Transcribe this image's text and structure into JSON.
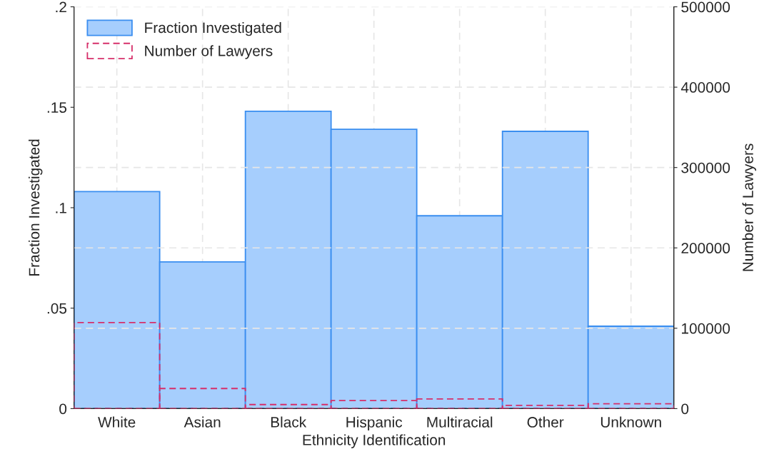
{
  "chart_data": {
    "type": "bar",
    "xlabel": "Ethnicity Identification",
    "ylabel": "Fraction Investigated",
    "y2label": "Number of Lawyers",
    "categories": [
      "White",
      "Asian",
      "Black",
      "Hispanic",
      "Multiracial",
      "Other",
      "Unknown"
    ],
    "series": [
      {
        "name": "Fraction Investigated",
        "color": "#a6cefd",
        "values": [
          0.108,
          0.073,
          0.148,
          0.139,
          0.096,
          0.138,
          0.041
        ]
      },
      {
        "name": "Number of Lawyers",
        "color": "#d62f6a",
        "axis": "y2",
        "line_style": "dashed",
        "values": [
          107000,
          25000,
          5000,
          10000,
          12000,
          4000,
          6000
        ]
      }
    ],
    "ylim": [
      0,
      0.2
    ],
    "yticks": [
      {
        "value": 0,
        "label": "0"
      },
      {
        "value": 0.05,
        "label": ".05"
      },
      {
        "value": 0.1,
        "label": ".1"
      },
      {
        "value": 0.15,
        "label": ".15"
      },
      {
        "value": 0.2,
        "label": ".2"
      }
    ],
    "y2lim": [
      0,
      500000
    ],
    "y2ticks": [
      0,
      100000,
      200000,
      300000,
      400000,
      500000
    ],
    "grid": true,
    "legend": "top left"
  }
}
